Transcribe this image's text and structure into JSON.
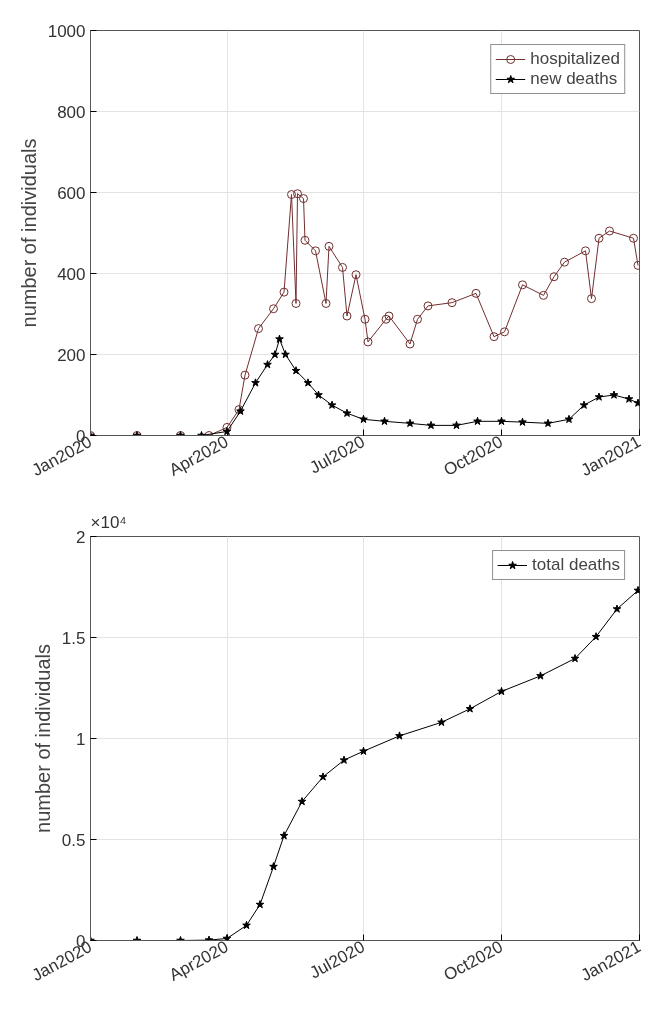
{
  "chart_data": [
    {
      "type": "line",
      "ylabel": "number of individuals",
      "xlim": [
        "2020-01-01",
        "2021-01-01"
      ],
      "ylim": [
        0,
        1000
      ],
      "xticks": [
        {
          "value": "2020-01-01",
          "label": "Jan2020"
        },
        {
          "value": "2020-04-01",
          "label": "Apr2020"
        },
        {
          "value": "2020-07-01",
          "label": "Jul2020"
        },
        {
          "value": "2020-10-01",
          "label": "Oct2020"
        },
        {
          "value": "2021-01-01",
          "label": "Jan2021"
        }
      ],
      "yticks": [
        0,
        200,
        400,
        600,
        800,
        1000
      ],
      "grid": true,
      "legend": "top right",
      "line_style": "solid",
      "series": [
        {
          "name": "hospitalized",
          "color": "#722f2f",
          "marker": "circle",
          "x": [
            "2020-01-01",
            "2020-02-01",
            "2020-03-01",
            "2020-03-20",
            "2020-04-01",
            "2020-04-09",
            "2020-04-13",
            "2020-04-22",
            "2020-05-02",
            "2020-05-09",
            "2020-05-14",
            "2020-05-17",
            "2020-05-18",
            "2020-05-22",
            "2020-05-23",
            "2020-05-30",
            "2020-06-06",
            "2020-06-08",
            "2020-06-17",
            "2020-06-20",
            "2020-06-26",
            "2020-07-02",
            "2020-07-04",
            "2020-07-16",
            "2020-07-18",
            "2020-08-01",
            "2020-08-06",
            "2020-08-13",
            "2020-08-29",
            "2020-09-14",
            "2020-09-26",
            "2020-10-03",
            "2020-10-15",
            "2020-10-29",
            "2020-11-05",
            "2020-11-12",
            "2020-11-26",
            "2020-11-30",
            "2020-12-05",
            "2020-12-12",
            "2020-12-28",
            "2020-12-31"
          ],
          "values": [
            0,
            0,
            0,
            0,
            20,
            64,
            149,
            264,
            313,
            354,
            595,
            326,
            597,
            585,
            482,
            456,
            326,
            467,
            415,
            295,
            397,
            287,
            231,
            287,
            295,
            226,
            287,
            320,
            328,
            351,
            244,
            256,
            372,
            346,
            392,
            428,
            456,
            338,
            487,
            505,
            487,
            420
          ]
        },
        {
          "name": "new deaths",
          "color": "#000000",
          "marker": "star",
          "x": [
            "2020-01-01",
            "2020-02-01",
            "2020-03-01",
            "2020-03-15",
            "2020-04-01",
            "2020-04-10",
            "2020-04-20",
            "2020-04-28",
            "2020-05-03",
            "2020-05-06",
            "2020-05-10",
            "2020-05-17",
            "2020-05-25",
            "2020-06-01",
            "2020-06-10",
            "2020-06-20",
            "2020-07-01",
            "2020-07-15",
            "2020-08-01",
            "2020-08-15",
            "2020-09-01",
            "2020-09-15",
            "2020-10-01",
            "2020-10-15",
            "2020-11-01",
            "2020-11-15",
            "2020-11-25",
            "2020-12-05",
            "2020-12-15",
            "2020-12-25",
            "2020-12-31"
          ],
          "values": [
            0,
            0,
            0,
            0,
            10,
            60,
            130,
            175,
            200,
            238,
            200,
            160,
            130,
            100,
            75,
            55,
            40,
            35,
            30,
            25,
            25,
            35,
            35,
            33,
            30,
            40,
            75,
            95,
            100,
            90,
            80
          ]
        }
      ]
    },
    {
      "type": "line",
      "ylabel": "number of individuals",
      "annotations": [
        "×10⁴"
      ],
      "xlim": [
        "2020-01-01",
        "2021-01-01"
      ],
      "ylim": [
        0,
        2
      ],
      "xticks": [
        {
          "value": "2020-01-01",
          "label": "Jan2020"
        },
        {
          "value": "2020-04-01",
          "label": "Apr2020"
        },
        {
          "value": "2020-07-01",
          "label": "Jul2020"
        },
        {
          "value": "2020-10-01",
          "label": "Oct2020"
        },
        {
          "value": "2021-01-01",
          "label": "Jan2021"
        }
      ],
      "yticks": [
        0,
        0.5,
        1,
        1.5,
        2
      ],
      "grid": true,
      "legend": "top right",
      "line_style": "solid",
      "series": [
        {
          "name": "total deaths",
          "color": "#000000",
          "marker": "star",
          "x": [
            "2020-01-01",
            "2020-02-01",
            "2020-03-01",
            "2020-03-20",
            "2020-04-01",
            "2020-04-14",
            "2020-04-23",
            "2020-05-02",
            "2020-05-09",
            "2020-05-21",
            "2020-06-04",
            "2020-06-18",
            "2020-07-01",
            "2020-07-25",
            "2020-08-22",
            "2020-09-10",
            "2020-10-01",
            "2020-10-27",
            "2020-11-19",
            "2020-12-03",
            "2020-12-17",
            "2020-12-31"
          ],
          "values": [
            0,
            0,
            0,
            0.002,
            0.01,
            0.075,
            0.178,
            0.366,
            0.519,
            0.688,
            0.81,
            0.893,
            0.937,
            1.013,
            1.08,
            1.147,
            1.233,
            1.31,
            1.396,
            1.504,
            1.641,
            1.733
          ]
        }
      ]
    }
  ]
}
